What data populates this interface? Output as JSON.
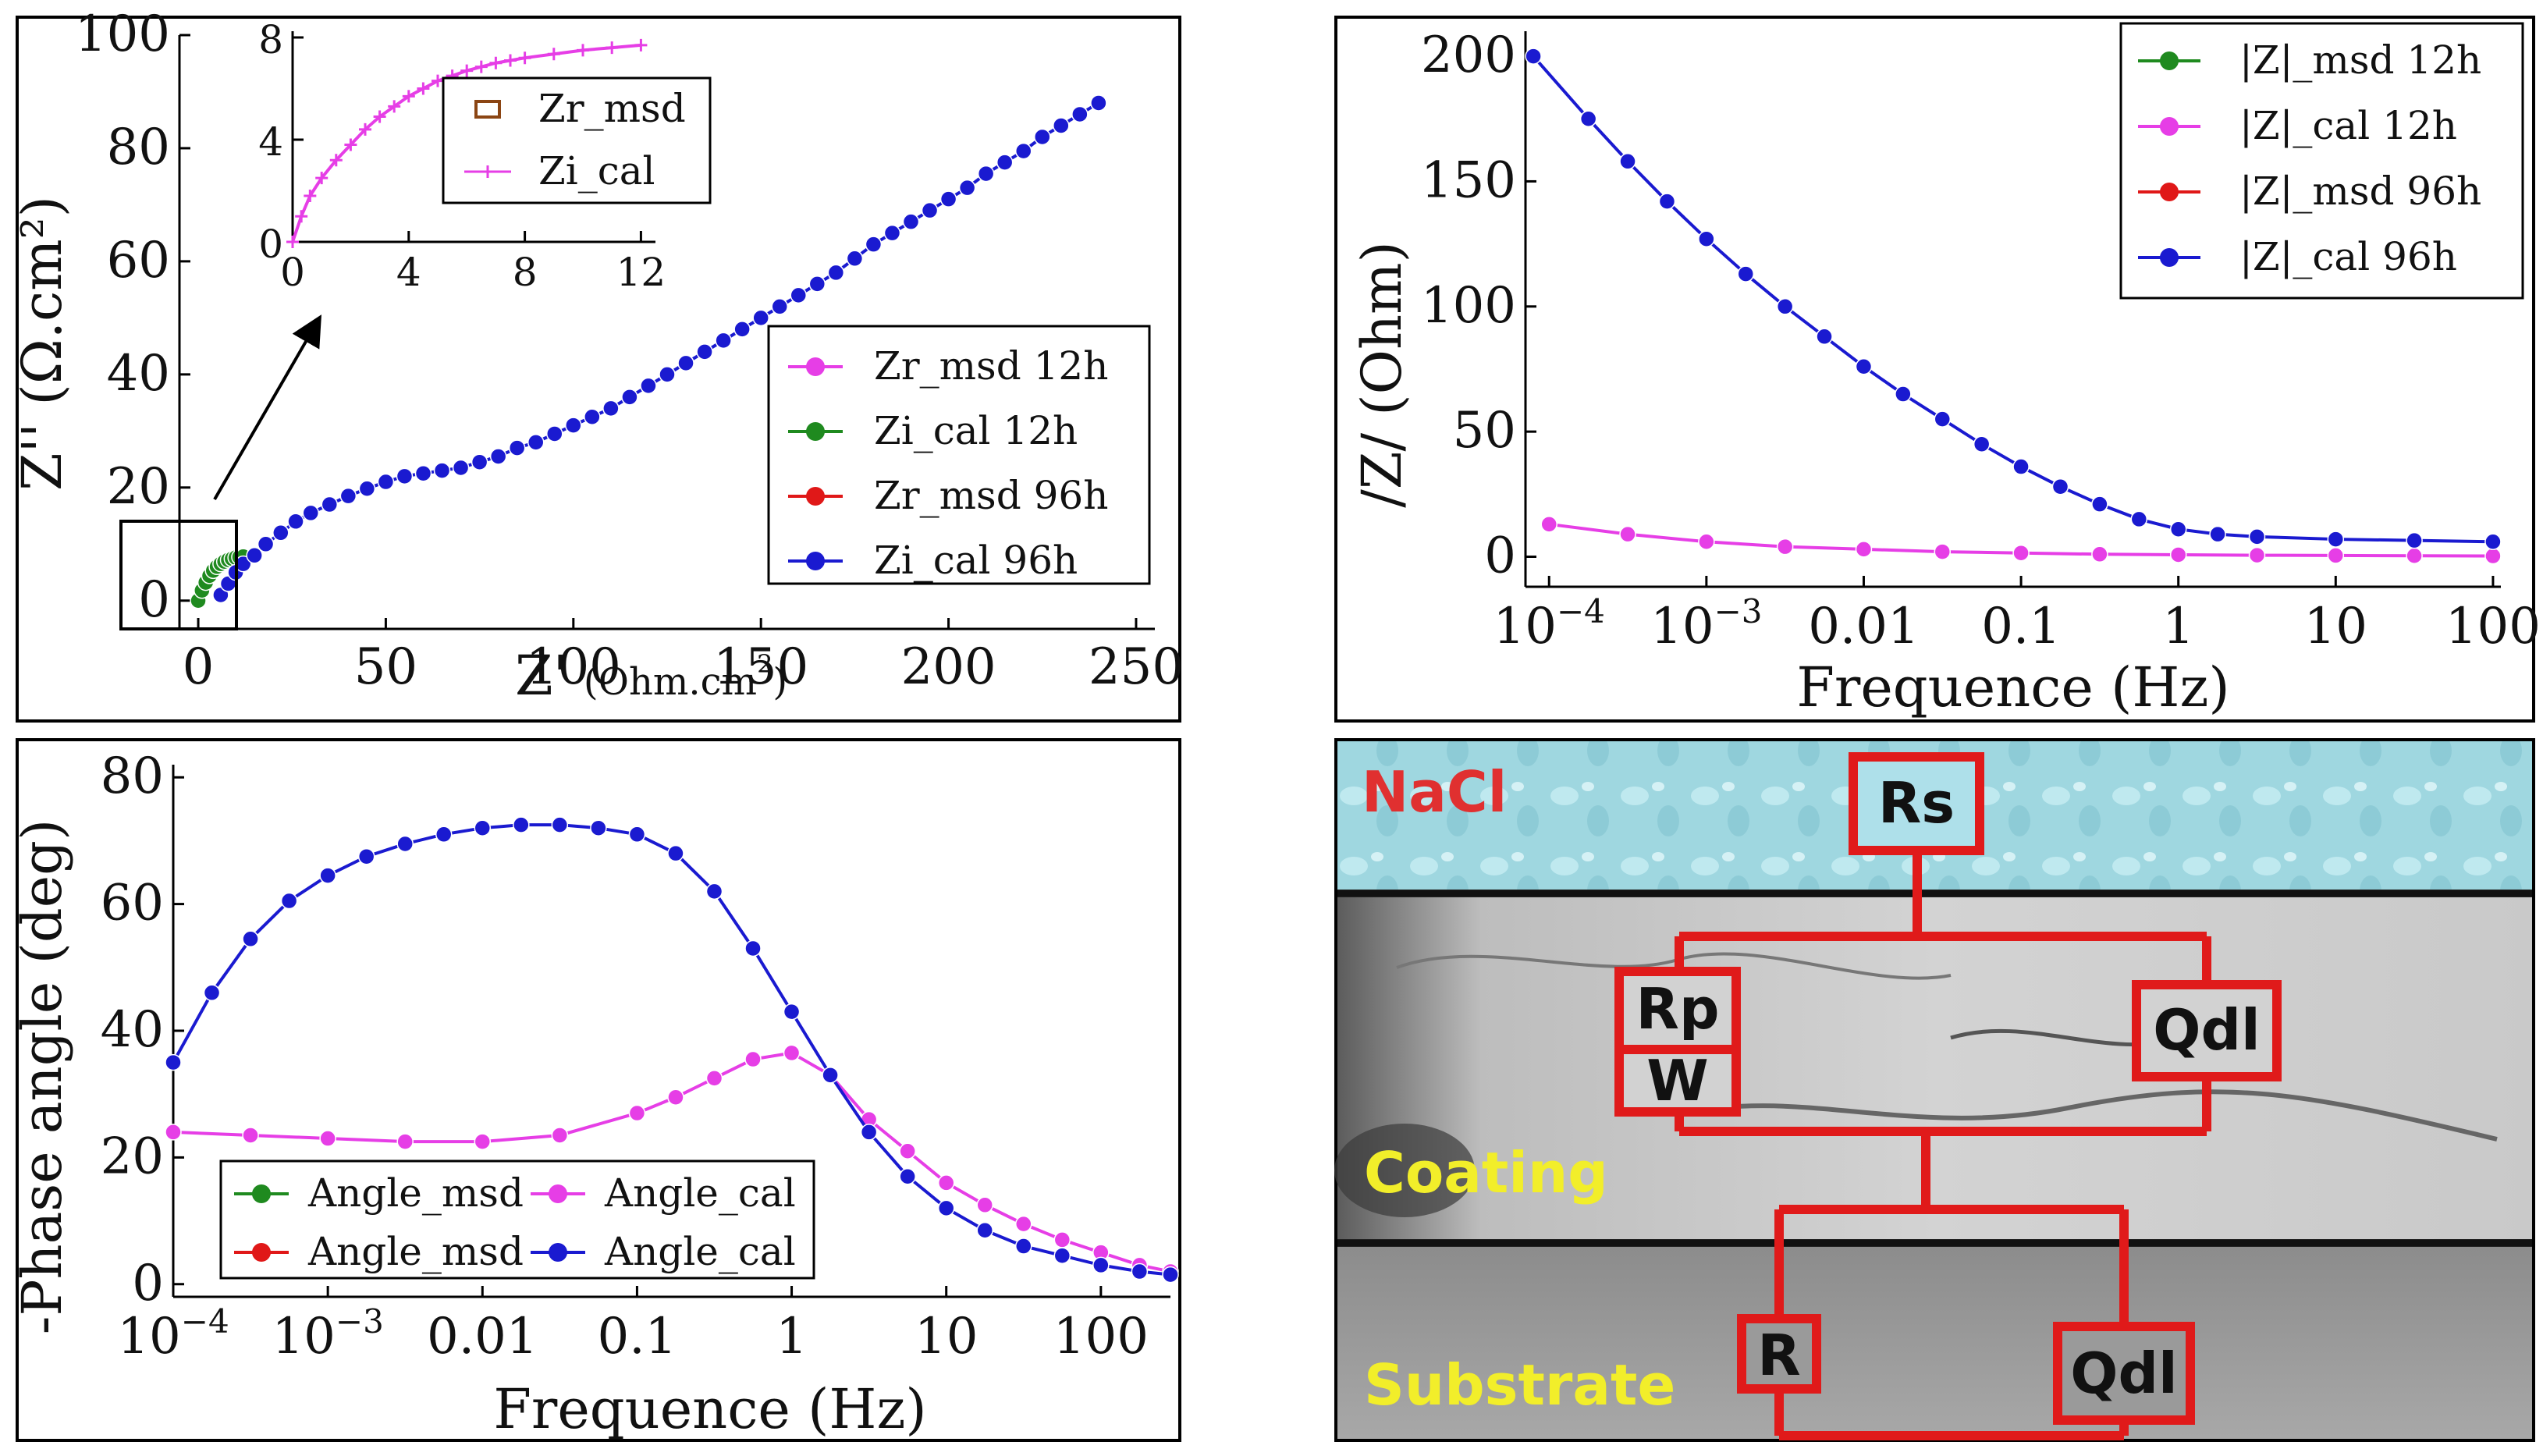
{
  "colors": {
    "magenta": "#e63ee6",
    "green": "#1f8a1f",
    "red": "#e01818",
    "blue": "#1a1ad0",
    "circuit": "#e01a1a",
    "layer_label_red": "#e03030",
    "layer_label_yellow": "#f2ee2a"
  },
  "chart_data": [
    {
      "id": "nyquist",
      "type": "scatter",
      "xlabel": "Z'",
      "xlabel_unit": "(Ohm.cm",
      "xlabel_unit_sup": "2",
      "xlabel_unit_close": ")",
      "ylabel": "Z'' (Ω.cm²)",
      "xlim": [
        -5,
        255
      ],
      "ylim": [
        -5,
        100
      ],
      "x_ticks": [
        {
          "v": 0,
          "label": "0"
        },
        {
          "v": 50,
          "label": "50"
        },
        {
          "v": 100,
          "label": "100"
        },
        {
          "v": 150,
          "label": "150"
        },
        {
          "v": 200,
          "label": "200"
        },
        {
          "v": 250,
          "label": "250"
        }
      ],
      "y_ticks": [
        {
          "v": 0,
          "label": "0"
        },
        {
          "v": 20,
          "label": "20"
        },
        {
          "v": 40,
          "label": "40"
        },
        {
          "v": 60,
          "label": "60"
        },
        {
          "v": 80,
          "label": "80"
        },
        {
          "v": 100,
          "label": "100"
        }
      ],
      "legend": [
        {
          "label": "Zr_msd 12h",
          "color": "#e63ee6"
        },
        {
          "label": "Zi_cal  12h",
          "color": "#1f8a1f"
        },
        {
          "label": "Zr_msd 96h",
          "color": "#e01818"
        },
        {
          "label": "Zi_cal  96h",
          "color": "#1a1ad0"
        }
      ],
      "series": [
        {
          "name": "12h",
          "color": "#1f8a1f",
          "x": [
            0,
            1,
            2,
            3,
            4,
            5,
            6,
            7,
            8,
            9,
            10,
            11,
            12
          ],
          "y": [
            0,
            1.8,
            3.2,
            4.4,
            5.3,
            6.0,
            6.5,
            6.9,
            7.2,
            7.4,
            7.6,
            7.7,
            7.8
          ]
        },
        {
          "name": "96h",
          "color": "#1a1ad0",
          "x": [
            6,
            8,
            10,
            12,
            15,
            18,
            22,
            26,
            30,
            35,
            40,
            45,
            50,
            55,
            60,
            65,
            70,
            75,
            80,
            85,
            90,
            95,
            100,
            105,
            110,
            115,
            120,
            125,
            130,
            135,
            140,
            145,
            150,
            155,
            160,
            165,
            170,
            175,
            180,
            185,
            190,
            195,
            200,
            205,
            210,
            215,
            220,
            225,
            230,
            235,
            240
          ],
          "y": [
            1,
            3,
            5,
            6.5,
            8,
            10,
            12,
            14,
            15.5,
            17,
            18.5,
            19.8,
            21,
            22,
            22.5,
            23,
            23.5,
            24.5,
            25.5,
            27,
            28,
            29.5,
            31,
            32.5,
            34,
            36,
            38,
            40,
            42,
            44,
            46,
            48,
            50,
            52,
            54,
            56,
            58,
            60.5,
            63,
            65,
            67,
            69,
            71,
            73,
            75.5,
            77.5,
            79.5,
            82,
            84,
            86,
            88
          ]
        }
      ],
      "inset": {
        "legend": [
          {
            "label": "Zr_msd",
            "color": "#8b4513"
          },
          {
            "label": "Zi_cal",
            "color": "#e63ee6"
          }
        ],
        "xlim": [
          0,
          12.5
        ],
        "ylim": [
          0,
          8
        ],
        "x_ticks": [
          {
            "v": 0,
            "label": "0"
          },
          {
            "v": 4,
            "label": "4"
          },
          {
            "v": 8,
            "label": "8"
          },
          {
            "v": 12,
            "label": "12"
          }
        ],
        "y_ticks": [
          {
            "v": 0,
            "label": "0"
          },
          {
            "v": 4,
            "label": "4"
          },
          {
            "v": 8,
            "label": "8"
          }
        ],
        "x": [
          0,
          0.3,
          0.6,
          1,
          1.5,
          2,
          2.5,
          3,
          3.5,
          4,
          4.5,
          5,
          5.5,
          6,
          6.5,
          7,
          7.5,
          8,
          9,
          10,
          11,
          12
        ],
        "y": [
          0,
          1.0,
          1.8,
          2.5,
          3.2,
          3.8,
          4.4,
          4.9,
          5.3,
          5.7,
          6.0,
          6.3,
          6.5,
          6.7,
          6.85,
          7.0,
          7.1,
          7.2,
          7.35,
          7.5,
          7.6,
          7.7
        ]
      }
    },
    {
      "id": "bode_mod",
      "type": "line",
      "xscale": "log",
      "xlabel": "Frequence (Hz)",
      "ylabel": "/Z/ (Ohm)",
      "xlim_log10": [
        -4.15,
        2.05
      ],
      "ylim": [
        -12,
        210
      ],
      "x_ticks": [
        {
          "v": -4,
          "label": "10",
          "sup": "−4"
        },
        {
          "v": -3,
          "label": "10",
          "sup": "−3"
        },
        {
          "v": -2,
          "label": "0.01"
        },
        {
          "v": -1,
          "label": "0.1"
        },
        {
          "v": 0,
          "label": "1"
        },
        {
          "v": 1,
          "label": "10"
        },
        {
          "v": 2,
          "label": "100"
        }
      ],
      "y_ticks": [
        {
          "v": 0,
          "label": "0"
        },
        {
          "v": 50,
          "label": "50"
        },
        {
          "v": 100,
          "label": "100"
        },
        {
          "v": 150,
          "label": "150"
        },
        {
          "v": 200,
          "label": "200"
        }
      ],
      "legend": [
        {
          "label": "|Z|_msd 12h",
          "color": "#1f8a1f"
        },
        {
          "label": "|Z|_cal   12h",
          "color": "#e63ee6"
        },
        {
          "label": "|Z|_msd 96h",
          "color": "#e01818"
        },
        {
          "label": "|Z|_cal   96h",
          "color": "#1a1ad0"
        }
      ],
      "series": [
        {
          "name": "12h",
          "color": "#e63ee6",
          "log10_x": [
            -4,
            -3.5,
            -3,
            -2.5,
            -2,
            -1.5,
            -1,
            -0.5,
            0,
            0.5,
            1,
            1.5,
            2
          ],
          "y": [
            13,
            9,
            6,
            4,
            3,
            2,
            1.5,
            1,
            0.8,
            0.6,
            0.5,
            0.4,
            0.3
          ]
        },
        {
          "name": "96h",
          "color": "#1a1ad0",
          "log10_x": [
            -4.1,
            -3.75,
            -3.5,
            -3.25,
            -3,
            -2.75,
            -2.5,
            -2.25,
            -2,
            -1.75,
            -1.5,
            -1.25,
            -1,
            -0.75,
            -0.5,
            -0.25,
            0,
            0.25,
            0.5,
            1,
            1.5,
            2
          ],
          "y": [
            200,
            175,
            158,
            142,
            127,
            113,
            100,
            88,
            76,
            65,
            55,
            45,
            36,
            28,
            21,
            15,
            11,
            9,
            8,
            7,
            6.5,
            6
          ]
        }
      ]
    },
    {
      "id": "bode_phase",
      "type": "line",
      "xscale": "log",
      "xlabel": "Frequence (Hz)",
      "ylabel": "-Phase angle (deg)",
      "xlim_log10": [
        -4.0,
        2.45
      ],
      "ylim": [
        -2,
        82
      ],
      "x_ticks": [
        {
          "v": -4,
          "label": "10",
          "sup": "−4"
        },
        {
          "v": -3,
          "label": "10",
          "sup": "−3"
        },
        {
          "v": -2,
          "label": "0.01"
        },
        {
          "v": -1,
          "label": "0.1"
        },
        {
          "v": 0,
          "label": "1"
        },
        {
          "v": 1,
          "label": "10"
        },
        {
          "v": 2,
          "label": "100"
        }
      ],
      "y_ticks": [
        {
          "v": 0,
          "label": "0"
        },
        {
          "v": 20,
          "label": "20"
        },
        {
          "v": 40,
          "label": "40"
        },
        {
          "v": 60,
          "label": "60"
        },
        {
          "v": 80,
          "label": "80"
        }
      ],
      "legend": [
        {
          "label": "Angle_msd",
          "color": "#1f8a1f"
        },
        {
          "label": "Angle_cal",
          "color": "#e63ee6"
        },
        {
          "label": "Angle_msd",
          "color": "#e01818"
        },
        {
          "label": "Angle_cal",
          "color": "#1a1ad0"
        }
      ],
      "series": [
        {
          "name": "12h",
          "color": "#e63ee6",
          "log10_x": [
            -4,
            -3.5,
            -3,
            -2.5,
            -2,
            -1.5,
            -1,
            -0.75,
            -0.5,
            -0.25,
            0,
            0.25,
            0.5,
            0.75,
            1,
            1.25,
            1.5,
            1.75,
            2,
            2.25,
            2.45
          ],
          "y": [
            24,
            23.5,
            23,
            22.5,
            22.5,
            23.5,
            27,
            29.5,
            32.5,
            35.5,
            36.5,
            33,
            26,
            21,
            16,
            12.5,
            9.5,
            7,
            5,
            3,
            2
          ]
        },
        {
          "name": "96h",
          "color": "#1a1ad0",
          "log10_x": [
            -4,
            -3.75,
            -3.5,
            -3.25,
            -3,
            -2.75,
            -2.5,
            -2.25,
            -2,
            -1.75,
            -1.5,
            -1.25,
            -1,
            -0.75,
            -0.5,
            -0.25,
            0,
            0.25,
            0.5,
            0.75,
            1,
            1.25,
            1.5,
            1.75,
            2,
            2.25,
            2.45
          ],
          "y": [
            35,
            46,
            54.5,
            60.5,
            64.5,
            67.5,
            69.5,
            71,
            72,
            72.5,
            72.5,
            72,
            71,
            68,
            62,
            53,
            43,
            33,
            24,
            17,
            12,
            8.5,
            6,
            4.5,
            3,
            2,
            1.5
          ]
        }
      ]
    }
  ],
  "circuit": {
    "layers": [
      "NaCl",
      "Coating",
      "Substrate"
    ],
    "elements": [
      "Rs",
      "Rp",
      "W",
      "Qdl",
      "R",
      "Qdl"
    ]
  }
}
